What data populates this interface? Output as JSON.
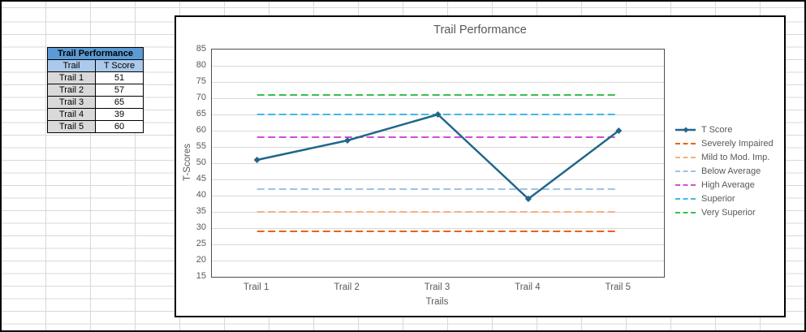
{
  "table": {
    "title": "Trail Performance",
    "columns": [
      "Trail",
      "T Score"
    ],
    "rows": [
      [
        "Trail 1",
        "51"
      ],
      [
        "Trail 2",
        "57"
      ],
      [
        "Trail 3",
        "65"
      ],
      [
        "Trail 4",
        "39"
      ],
      [
        "Trail 5",
        "60"
      ]
    ],
    "colors": {
      "title_bg": "#5B9BD5",
      "header_bg": "#ABC9EA",
      "label_col_bg": "#D9D9D9",
      "value_col_bg": "#FFFFFF",
      "border": "#000000"
    }
  },
  "chart_data": {
    "type": "line",
    "title": "Trail Performance",
    "xlabel": "Trails",
    "ylabel": "T-Scores",
    "categories": [
      "Trail 1",
      "Trail 2",
      "Trail 3",
      "Trail 4",
      "Trail 5"
    ],
    "series": [
      {
        "name": "T Score",
        "values": [
          51,
          57,
          65,
          39,
          60
        ],
        "color": "#20678A",
        "style": "solid-marker"
      }
    ],
    "reference_lines": [
      {
        "name": "Severely Impaired",
        "value": 29,
        "color": "#E4641C"
      },
      {
        "name": "Mild to Mod. Imp.",
        "value": 35,
        "color": "#F4B183"
      },
      {
        "name": "Below Average",
        "value": 42,
        "color": "#9DC3E6"
      },
      {
        "name": "High Average",
        "value": 58,
        "color": "#D24FD2"
      },
      {
        "name": "Superior",
        "value": 65,
        "color": "#41B8E8"
      },
      {
        "name": "Very Superior",
        "value": 71,
        "color": "#3CBD50"
      }
    ],
    "legend_order": [
      "T Score",
      "Severely Impaired",
      "Mild to Mod. Imp.",
      "Below Average",
      "High Average",
      "Superior",
      "Very Superior"
    ],
    "legend_position": "right",
    "grid": true,
    "ylim": [
      15,
      85
    ],
    "ytick_step": 5,
    "text_color": "#595959",
    "gridline_color": "#D9D9D9"
  }
}
